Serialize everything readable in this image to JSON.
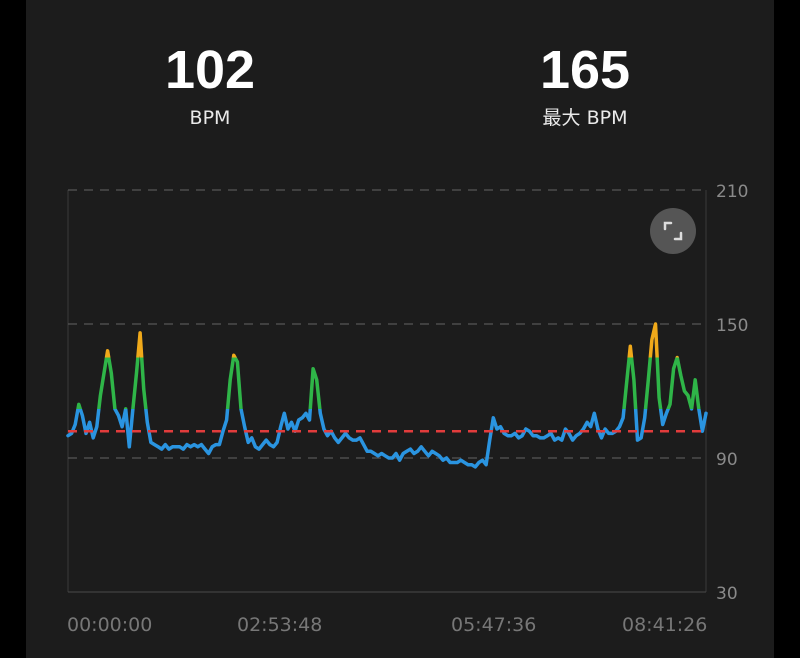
{
  "stats": {
    "current": {
      "value": "102",
      "label": "BPM"
    },
    "max": {
      "value": "165",
      "label": "最大 BPM"
    }
  },
  "controls": {
    "expand_icon": "expand-icon"
  },
  "chart_data": {
    "type": "line",
    "ylim": [
      30,
      210
    ],
    "y_ticks": [
      "210",
      "150",
      "90",
      "30"
    ],
    "x_ticks": [
      "00:00:00",
      "02:53:48",
      "05:47:36",
      "08:41:26"
    ],
    "average_line": 102,
    "grid": "horizontal-dashed",
    "zone_colors": {
      "normal": "#2a94e0",
      "light": "#2fb548",
      "moderate": "#f0a91a",
      "high": "#f07a1a"
    },
    "zone_thresholds": [
      112,
      135,
      155
    ],
    "average_color": "#e23c3c",
    "series": [
      {
        "values": [
          100,
          101,
          105,
          114,
          109,
          101,
          106,
          99,
          104,
          118,
          128,
          138,
          128,
          112,
          109,
          104,
          112,
          95,
          112,
          128,
          146,
          121,
          106,
          97,
          96,
          95,
          94,
          96,
          94,
          95,
          95,
          95,
          94,
          96,
          95,
          96,
          95,
          96,
          94,
          92,
          95,
          96,
          96,
          102,
          107,
          125,
          136,
          133,
          112,
          104,
          97,
          99,
          95,
          94,
          96,
          98,
          96,
          95,
          97,
          104,
          110,
          103,
          106,
          102,
          107,
          108,
          110,
          107,
          130,
          125,
          110,
          103,
          100,
          102,
          99,
          97,
          99,
          101,
          99,
          98,
          98,
          99,
          96,
          93,
          93,
          92,
          91,
          92,
          91,
          90,
          90,
          92,
          89,
          92,
          93,
          94,
          92,
          93,
          95,
          93,
          91,
          93,
          92,
          91,
          89,
          90,
          88,
          88,
          88,
          89,
          88,
          87,
          87,
          86,
          88,
          89,
          87,
          98,
          108,
          103,
          104,
          101,
          100,
          100,
          101,
          99,
          100,
          103,
          102,
          100,
          100,
          99,
          99,
          100,
          101,
          98,
          99,
          98,
          103,
          101,
          98,
          100,
          101,
          103,
          106,
          104,
          110,
          103,
          99,
          103,
          101,
          101,
          102,
          104,
          108,
          124,
          140,
          125,
          98,
          99,
          108,
          125,
          143,
          150,
          117,
          105,
          110,
          114,
          130,
          135,
          127,
          120,
          118,
          112,
          125,
          112,
          102,
          110
        ]
      }
    ]
  }
}
